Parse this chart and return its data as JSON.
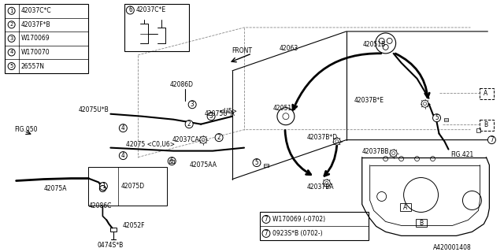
{
  "bg_color": "#ffffff",
  "line_color": "#000000",
  "gray": "#888888",
  "legend_items": [
    {
      "num": "1",
      "part": "42037C*C"
    },
    {
      "num": "2",
      "part": "42037F*B"
    },
    {
      "num": "3",
      "part": "W170069"
    },
    {
      "num": "4",
      "part": "W170070"
    },
    {
      "num": "5",
      "part": "26557N"
    }
  ],
  "part6_label": "42037C*E",
  "fig_ref_left": "FIG.050",
  "fig_ref_right": "FIG.421",
  "diagram_id": "A420001408",
  "note_line1": "W170069 (-0702)",
  "note_line2": "0923S*B (0702-)",
  "front_label": "FRONT"
}
